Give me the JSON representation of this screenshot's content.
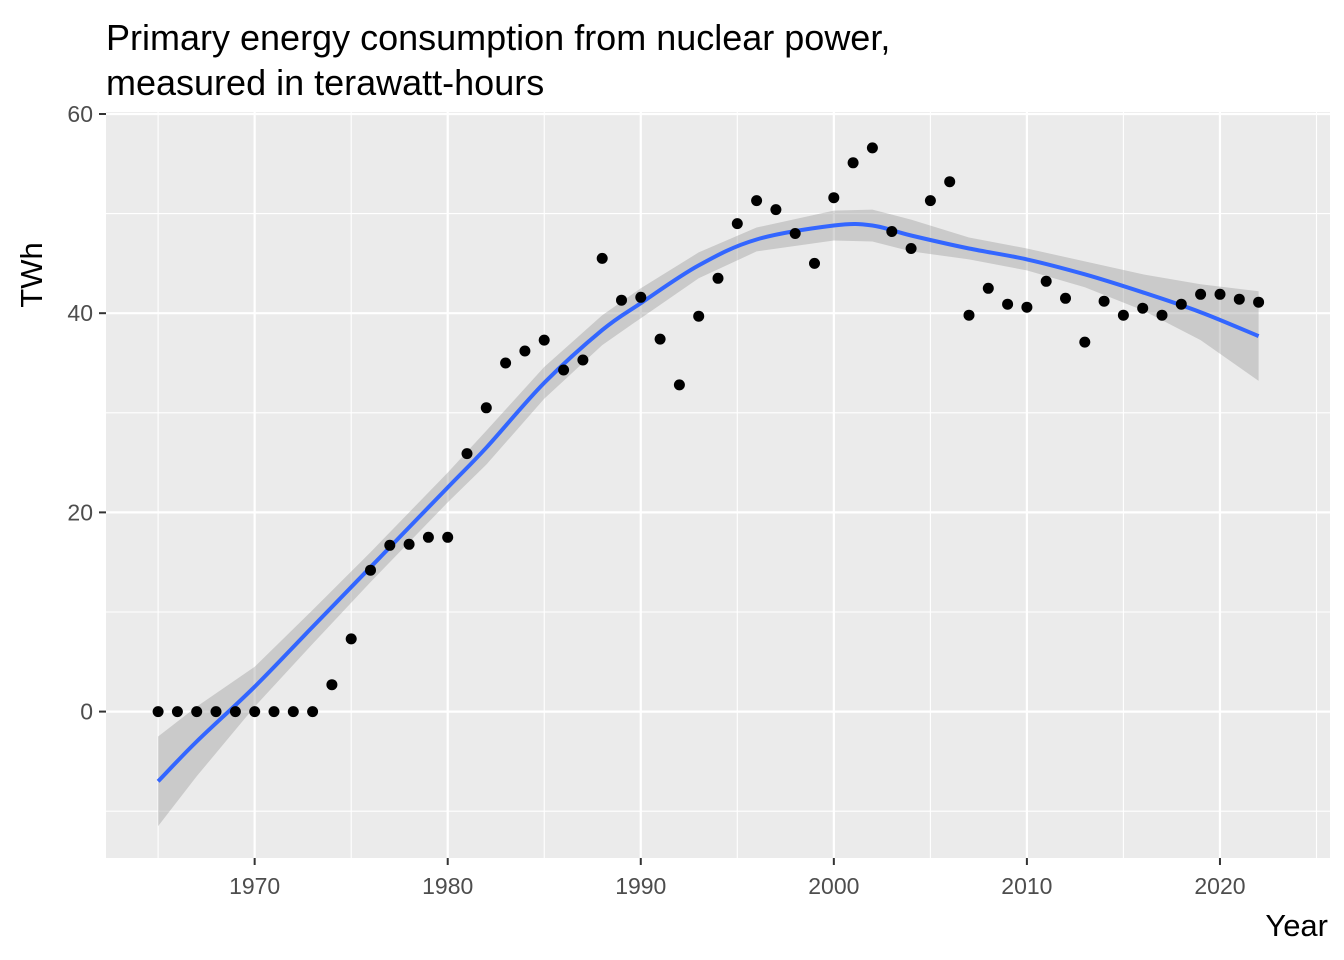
{
  "chart_data": {
    "type": "scatter",
    "title": "Primary energy consumption from nuclear power,",
    "subtitle": "measured in terawatt-hours",
    "xlabel": "Year",
    "ylabel": "TWh",
    "xlim": [
      1962.3,
      2025.7
    ],
    "ylim": [
      -14.7,
      60.2
    ],
    "x_ticks": [
      1970,
      1980,
      1990,
      2000,
      2010,
      2020
    ],
    "y_ticks": [
      0,
      20,
      40,
      60
    ],
    "x_tick_labels": [
      "1970",
      "1980",
      "1990",
      "2000",
      "2010",
      "2020"
    ],
    "y_tick_labels": [
      "0",
      "20",
      "40",
      "60"
    ],
    "grid": true,
    "colors": {
      "panel": "#ebebeb",
      "grid": "#ffffff",
      "points": "#000000",
      "smooth_line": "#3366ff",
      "confidence_band": "#999999"
    },
    "series": [
      {
        "type": "points",
        "x": [
          1965,
          1966,
          1967,
          1968,
          1969,
          1970,
          1971,
          1972,
          1973,
          1974,
          1975,
          1976,
          1977,
          1978,
          1979,
          1980,
          1981,
          1982,
          1983,
          1984,
          1985,
          1986,
          1987,
          1988,
          1989,
          1990,
          1991,
          1992,
          1993,
          1994,
          1995,
          1996,
          1997,
          1998,
          1999,
          2000,
          2001,
          2002,
          2003,
          2004,
          2005,
          2006,
          2007,
          2008,
          2009,
          2010,
          2011,
          2012,
          2013,
          2014,
          2015,
          2016,
          2017,
          2018,
          2019,
          2020,
          2021,
          2022
        ],
        "y": [
          0,
          0,
          0,
          0,
          0,
          0,
          0,
          0,
          0,
          2.7,
          7.3,
          14.2,
          16.7,
          16.8,
          17.5,
          17.5,
          25.9,
          30.5,
          35.0,
          36.2,
          37.3,
          34.3,
          35.3,
          45.5,
          41.3,
          41.6,
          37.4,
          32.8,
          39.7,
          43.5,
          49.0,
          51.3,
          50.4,
          48.0,
          45.0,
          51.6,
          55.1,
          56.6,
          48.2,
          46.5,
          51.3,
          53.2,
          39.8,
          42.5,
          40.9,
          40.6,
          43.2,
          41.5,
          37.1,
          41.2,
          39.8,
          40.5,
          39.8,
          40.9,
          41.9,
          41.9,
          41.4,
          41.1
        ]
      },
      {
        "type": "smooth",
        "x": [
          1965,
          1967,
          1970,
          1973,
          1976,
          1980,
          1982,
          1985,
          1988,
          1990,
          1993,
          1996,
          2000,
          2002,
          2004,
          2007,
          2010,
          2013,
          2016,
          2019,
          2022
        ],
        "y": [
          -7.0,
          -3.0,
          2.5,
          8.5,
          14.5,
          22.5,
          26.5,
          33.0,
          38.3,
          41.0,
          44.8,
          47.4,
          48.8,
          48.8,
          47.8,
          46.5,
          45.4,
          43.9,
          42.1,
          40.1,
          37.7
        ],
        "lower": [
          -11.5,
          -6.5,
          0.5,
          6.8,
          13.0,
          21.0,
          24.8,
          31.4,
          36.8,
          39.5,
          43.5,
          46.2,
          47.3,
          47.2,
          46.2,
          45.4,
          44.3,
          42.6,
          40.3,
          37.3,
          33.2
        ],
        "upper": [
          -2.5,
          0.5,
          4.5,
          10.2,
          16.0,
          24.0,
          28.2,
          34.6,
          39.8,
          42.5,
          46.1,
          48.6,
          50.3,
          50.4,
          49.4,
          47.6,
          46.5,
          45.2,
          43.9,
          42.9,
          42.2
        ]
      }
    ]
  }
}
